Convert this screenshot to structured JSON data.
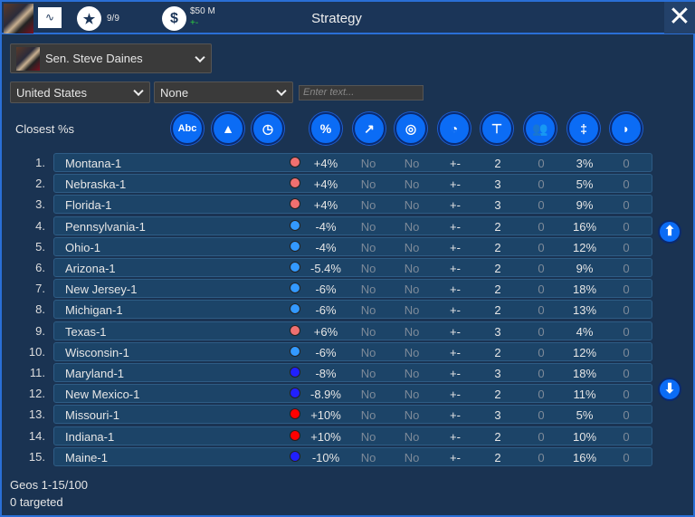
{
  "header": {
    "title": "Strategy",
    "stars": "9/9",
    "money": "$50 M",
    "money_change": "+-"
  },
  "candidate_select": {
    "value": "Sen. Steve Daines"
  },
  "filters": {
    "region": "United States",
    "sub": "None",
    "search_placeholder": "Enter text..."
  },
  "sort_label": "Closest %s",
  "column_icons": [
    "abc-icon",
    "gold-bars-icon",
    "stopwatch-icon",
    "percent-icon",
    "trend-chart-icon",
    "target-icon",
    "speedometer-icon",
    "org-chart-icon",
    "people-icon",
    "signpost-icon",
    "satellite-dish-icon"
  ],
  "dot_colors": {
    "lightred": "#f07070",
    "lightblue": "#3399ff",
    "blue": "#2020ff",
    "red": "#ff0000"
  },
  "rows": [
    {
      "rank": "1.",
      "name": "Montana-1",
      "dot": "lightred",
      "pct": "+4%",
      "c1": "No",
      "c2": "No",
      "c3": "+-",
      "c4": "2",
      "c5": "0",
      "c6": "3%",
      "c7": "0"
    },
    {
      "rank": "2.",
      "name": "Nebraska-1",
      "dot": "lightred",
      "pct": "+4%",
      "c1": "No",
      "c2": "No",
      "c3": "+-",
      "c4": "3",
      "c5": "0",
      "c6": "5%",
      "c7": "0"
    },
    {
      "rank": "3.",
      "name": "Florida-1",
      "dot": "lightred",
      "pct": "+4%",
      "c1": "No",
      "c2": "No",
      "c3": "+-",
      "c4": "3",
      "c5": "0",
      "c6": "9%",
      "c7": "0"
    },
    {
      "rank": "4.",
      "name": "Pennsylvania-1",
      "dot": "lightblue",
      "pct": "-4%",
      "c1": "No",
      "c2": "No",
      "c3": "+-",
      "c4": "2",
      "c5": "0",
      "c6": "16%",
      "c7": "0"
    },
    {
      "rank": "5.",
      "name": "Ohio-1",
      "dot": "lightblue",
      "pct": "-4%",
      "c1": "No",
      "c2": "No",
      "c3": "+-",
      "c4": "2",
      "c5": "0",
      "c6": "12%",
      "c7": "0"
    },
    {
      "rank": "6.",
      "name": "Arizona-1",
      "dot": "lightblue",
      "pct": "-5.4%",
      "c1": "No",
      "c2": "No",
      "c3": "+-",
      "c4": "2",
      "c5": "0",
      "c6": "9%",
      "c7": "0"
    },
    {
      "rank": "7.",
      "name": "New Jersey-1",
      "dot": "lightblue",
      "pct": "-6%",
      "c1": "No",
      "c2": "No",
      "c3": "+-",
      "c4": "2",
      "c5": "0",
      "c6": "18%",
      "c7": "0"
    },
    {
      "rank": "8.",
      "name": "Michigan-1",
      "dot": "lightblue",
      "pct": "-6%",
      "c1": "No",
      "c2": "No",
      "c3": "+-",
      "c4": "2",
      "c5": "0",
      "c6": "13%",
      "c7": "0"
    },
    {
      "rank": "9.",
      "name": "Texas-1",
      "dot": "lightred",
      "pct": "+6%",
      "c1": "No",
      "c2": "No",
      "c3": "+-",
      "c4": "3",
      "c5": "0",
      "c6": "4%",
      "c7": "0"
    },
    {
      "rank": "10.",
      "name": "Wisconsin-1",
      "dot": "lightblue",
      "pct": "-6%",
      "c1": "No",
      "c2": "No",
      "c3": "+-",
      "c4": "2",
      "c5": "0",
      "c6": "12%",
      "c7": "0"
    },
    {
      "rank": "11.",
      "name": "Maryland-1",
      "dot": "blue",
      "pct": "-8%",
      "c1": "No",
      "c2": "No",
      "c3": "+-",
      "c4": "3",
      "c5": "0",
      "c6": "18%",
      "c7": "0"
    },
    {
      "rank": "12.",
      "name": "New Mexico-1",
      "dot": "blue",
      "pct": "-8.9%",
      "c1": "No",
      "c2": "No",
      "c3": "+-",
      "c4": "2",
      "c5": "0",
      "c6": "11%",
      "c7": "0"
    },
    {
      "rank": "13.",
      "name": "Missouri-1",
      "dot": "red",
      "pct": "+10%",
      "c1": "No",
      "c2": "No",
      "c3": "+-",
      "c4": "3",
      "c5": "0",
      "c6": "5%",
      "c7": "0"
    },
    {
      "rank": "14.",
      "name": "Indiana-1",
      "dot": "red",
      "pct": "+10%",
      "c1": "No",
      "c2": "No",
      "c3": "+-",
      "c4": "2",
      "c5": "0",
      "c6": "10%",
      "c7": "0"
    },
    {
      "rank": "15.",
      "name": "Maine-1",
      "dot": "blue",
      "pct": "-10%",
      "c1": "No",
      "c2": "No",
      "c3": "+-",
      "c4": "2",
      "c5": "0",
      "c6": "16%",
      "c7": "0"
    }
  ],
  "footer": {
    "range": "Geos 1-15/100",
    "targeted": "0 targeted"
  }
}
